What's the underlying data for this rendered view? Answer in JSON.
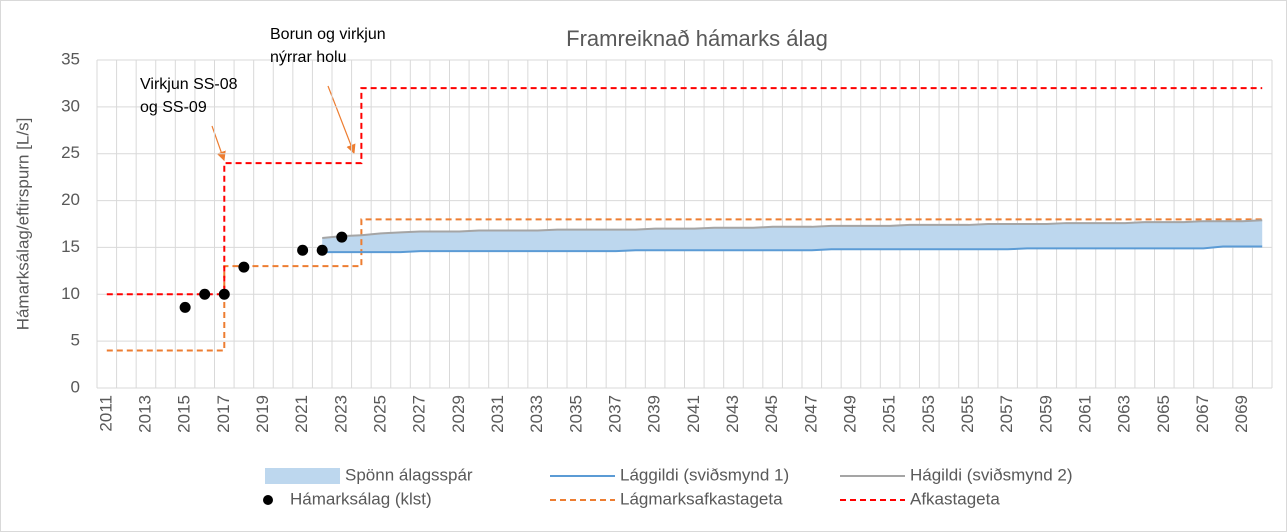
{
  "chart_data": {
    "type": "line",
    "title": "Framreiknað hámarks álag",
    "y_label": "Hámarksálag/eftirspurn [L/s]",
    "categories": [
      "2011",
      null,
      "2013",
      null,
      "2015",
      null,
      "2017",
      null,
      "2019",
      null,
      "2021",
      null,
      "2023",
      null,
      "2025",
      null,
      "2027",
      null,
      "2029",
      null,
      "2031",
      null,
      "2033",
      null,
      "2035",
      null,
      "2037",
      null,
      "2039",
      null,
      "2041",
      null,
      "2043",
      null,
      "2045",
      null,
      "2047",
      null,
      "2049",
      null,
      "2051",
      null,
      "2053",
      null,
      "2055",
      null,
      "2057",
      null,
      "2059",
      null,
      "2061",
      null,
      "2063",
      null,
      "2065",
      null,
      "2067",
      null,
      "2069",
      null
    ],
    "ylim": [
      0,
      35
    ],
    "yticks": [
      0,
      5,
      10,
      15,
      20,
      25,
      30,
      35
    ],
    "grid": true,
    "band": {
      "name": "Spönn álagsspár",
      "color": "#bdd7ee"
    },
    "series": [
      {
        "name": "Lággildi (sviðsmynd 1)",
        "color": "#5b9bd5",
        "style": "line",
        "values": [
          null,
          null,
          null,
          null,
          null,
          null,
          null,
          null,
          null,
          null,
          null,
          14.5,
          14.5,
          14.5,
          14.5,
          14.5,
          14.6,
          14.6,
          14.6,
          14.6,
          14.6,
          14.6,
          14.6,
          14.6,
          14.6,
          14.6,
          14.6,
          14.7,
          14.7,
          14.7,
          14.7,
          14.7,
          14.7,
          14.7,
          14.7,
          14.7,
          14.7,
          14.8,
          14.8,
          14.8,
          14.8,
          14.8,
          14.8,
          14.8,
          14.8,
          14.8,
          14.8,
          14.9,
          14.9,
          14.9,
          14.9,
          14.9,
          14.9,
          14.9,
          14.9,
          14.9,
          14.9,
          15.1,
          15.1,
          15.1
        ]
      },
      {
        "name": "Hágildi (sviðsmynd 2)",
        "color": "#a5a5a5",
        "style": "line",
        "values": [
          null,
          null,
          null,
          null,
          null,
          null,
          null,
          null,
          null,
          null,
          null,
          16.0,
          16.2,
          16.3,
          16.5,
          16.6,
          16.7,
          16.7,
          16.7,
          16.8,
          16.8,
          16.8,
          16.8,
          16.9,
          16.9,
          16.9,
          16.9,
          16.9,
          17.0,
          17.0,
          17.0,
          17.1,
          17.1,
          17.1,
          17.2,
          17.2,
          17.2,
          17.3,
          17.3,
          17.3,
          17.3,
          17.4,
          17.4,
          17.4,
          17.4,
          17.5,
          17.5,
          17.5,
          17.5,
          17.6,
          17.6,
          17.6,
          17.6,
          17.7,
          17.7,
          17.7,
          17.8,
          17.8,
          17.8,
          17.9
        ]
      },
      {
        "name": "Hámarksálag (klst)",
        "color": "#000000",
        "style": "marker",
        "values": [
          null,
          null,
          null,
          null,
          8.6,
          10,
          10,
          12.9,
          null,
          null,
          14.7,
          14.7,
          16.1,
          null,
          null,
          null,
          null,
          null,
          null,
          null,
          null,
          null,
          null,
          null,
          null,
          null,
          null,
          null,
          null,
          null,
          null,
          null,
          null,
          null,
          null,
          null,
          null,
          null,
          null,
          null,
          null,
          null,
          null,
          null,
          null,
          null,
          null,
          null,
          null,
          null,
          null,
          null,
          null,
          null,
          null,
          null,
          null,
          null,
          null,
          null
        ]
      },
      {
        "name": "Lágmarksafkastageta",
        "color": "#ed7d31",
        "style": "step-dashed",
        "values": [
          4,
          4,
          4,
          4,
          4,
          4,
          13,
          13,
          13,
          13,
          13,
          13,
          13,
          18,
          18,
          18,
          18,
          18,
          18,
          18,
          18,
          18,
          18,
          18,
          18,
          18,
          18,
          18,
          18,
          18,
          18,
          18,
          18,
          18,
          18,
          18,
          18,
          18,
          18,
          18,
          18,
          18,
          18,
          18,
          18,
          18,
          18,
          18,
          18,
          18,
          18,
          18,
          18,
          18,
          18,
          18,
          18,
          18,
          18,
          18
        ]
      },
      {
        "name": "Afkastageta",
        "color": "#ff0000",
        "style": "step-dashed",
        "values": [
          10,
          10,
          10,
          10,
          10,
          10,
          24,
          24,
          24,
          24,
          24,
          24,
          24,
          32,
          32,
          32,
          32,
          32,
          32,
          32,
          32,
          32,
          32,
          32,
          32,
          32,
          32,
          32,
          32,
          32,
          32,
          32,
          32,
          32,
          32,
          32,
          32,
          32,
          32,
          32,
          32,
          32,
          32,
          32,
          32,
          32,
          32,
          32,
          32,
          32,
          32,
          32,
          32,
          32,
          32,
          32,
          32,
          32,
          32,
          32
        ]
      }
    ],
    "annotations": [
      {
        "lines": [
          "Virkjun SS-08",
          "og SS-09"
        ]
      },
      {
        "lines": [
          "Borun og virkjun",
          "nýrrar holu"
        ]
      }
    ]
  }
}
